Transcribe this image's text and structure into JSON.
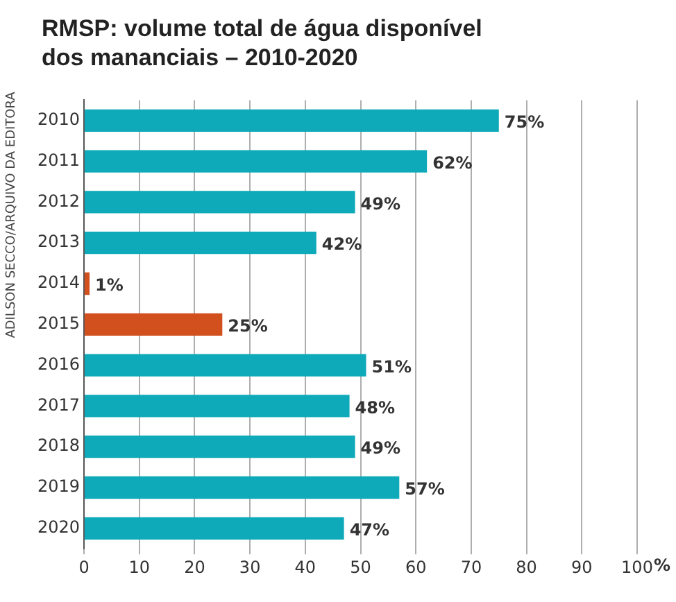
{
  "chart_data": {
    "type": "bar",
    "orientation": "horizontal",
    "title": "RMSP: volume total de água disponível dos mananciais – 2010-2020",
    "xlabel": "%",
    "categories": [
      "2010",
      "2011",
      "2012",
      "2013",
      "2014",
      "2015",
      "2016",
      "2017",
      "2018",
      "2019",
      "2020"
    ],
    "values": [
      75,
      62,
      49,
      42,
      1,
      25,
      51,
      48,
      49,
      57,
      47
    ],
    "colors": [
      "#0eaab9",
      "#0eaab9",
      "#0eaab9",
      "#0eaab9",
      "#d24f1e",
      "#d24f1e",
      "#0eaab9",
      "#0eaab9",
      "#0eaab9",
      "#0eaab9",
      "#0eaab9"
    ],
    "value_labels": [
      "75%",
      "62%",
      "49%",
      "42%",
      "1%",
      "25%",
      "51%",
      "48%",
      "49%",
      "57%",
      "47%"
    ],
    "xlim": [
      0,
      100
    ],
    "xticks": [
      0,
      10,
      20,
      30,
      40,
      50,
      60,
      70,
      80,
      90,
      100
    ],
    "grid": "x",
    "annotations": [
      "ADILSON SECCO/ARQUIVO DA EDITORA"
    ]
  }
}
